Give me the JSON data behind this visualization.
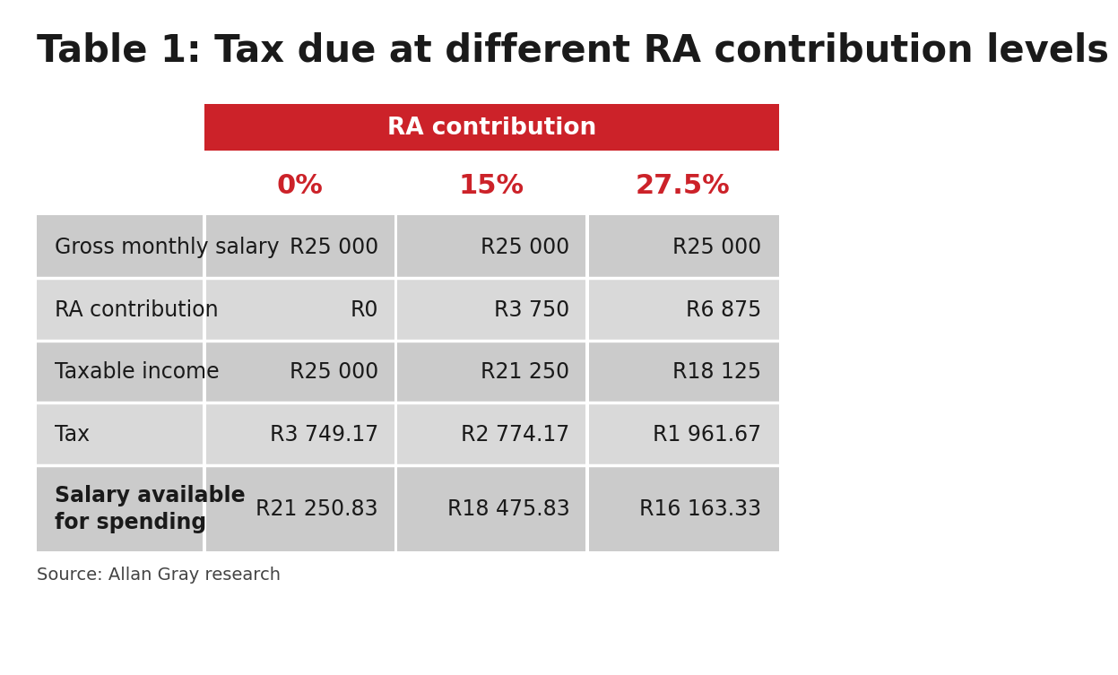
{
  "title": "Table 1: Tax due at different RA contribution levels",
  "header_label": "RA contribution",
  "header_bg": "#cc2229",
  "header_text_color": "#ffffff",
  "col_headers": [
    "0%",
    "15%",
    "27.5%"
  ],
  "col_header_color": "#cc2229",
  "row_labels": [
    "Gross monthly salary",
    "RA contribution",
    "Taxable income",
    "Tax",
    "Salary available\nfor spending"
  ],
  "row_label_bold": [
    false,
    false,
    false,
    false,
    true
  ],
  "data": [
    [
      "R25 000",
      "R25 000",
      "R25 000"
    ],
    [
      "R0",
      "R3 750",
      "R6 875"
    ],
    [
      "R25 000",
      "R21 250",
      "R18 125"
    ],
    [
      "R3 749.17",
      "R2 774.17",
      "R1 961.67"
    ],
    [
      "R21 250.83",
      "R18 475.83",
      "R16 163.33"
    ]
  ],
  "row_bg_colors": [
    "#cbcbcb",
    "#d9d9d9",
    "#cbcbcb",
    "#d9d9d9",
    "#cbcbcb"
  ],
  "sep_color": "#ffffff",
  "source_text": "Source: Allan Gray research",
  "bg_color": "#ffffff",
  "title_fontsize": 30,
  "header_fontsize": 19,
  "col_header_fontsize": 22,
  "cell_fontsize": 17,
  "source_fontsize": 14
}
